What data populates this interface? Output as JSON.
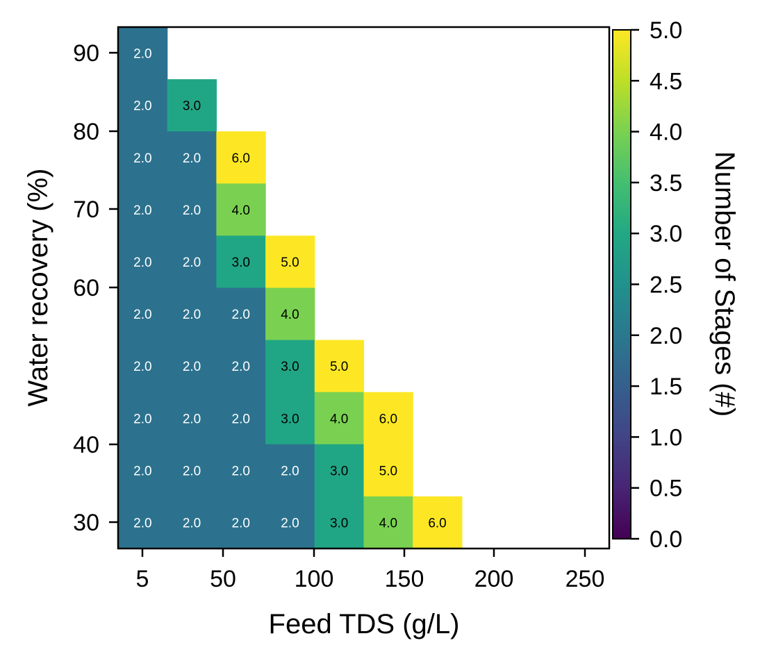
{
  "chart_data": {
    "type": "heatmap",
    "xlabel": "Feed TDS (g/L)",
    "ylabel": "Water recovery (%)",
    "colorbar_label": "Number of Stages (#)",
    "x_ticks": [
      "5",
      "50",
      "100",
      "150",
      "200",
      "250"
    ],
    "y_ticks": [
      "30",
      "40",
      "60",
      "70",
      "80",
      "90"
    ],
    "colorbar_ticks": [
      "0.0",
      "0.5",
      "1.0",
      "1.5",
      "2.0",
      "2.5",
      "3.0",
      "3.5",
      "4.0",
      "4.5",
      "5.0"
    ],
    "color_range": [
      0,
      5
    ],
    "colormap": "viridis",
    "rows": [
      {
        "row": 1,
        "values": [
          2,
          null,
          null,
          null,
          null,
          null,
          null,
          null,
          null,
          null
        ]
      },
      {
        "row": 2,
        "values": [
          2,
          3,
          null,
          null,
          null,
          null,
          null,
          null,
          null,
          null
        ]
      },
      {
        "row": 3,
        "values": [
          2,
          2,
          6,
          null,
          null,
          null,
          null,
          null,
          null,
          null
        ]
      },
      {
        "row": 4,
        "values": [
          2,
          2,
          4,
          null,
          null,
          null,
          null,
          null,
          null,
          null
        ]
      },
      {
        "row": 5,
        "values": [
          2,
          2,
          3,
          5,
          null,
          null,
          null,
          null,
          null,
          null
        ]
      },
      {
        "row": 6,
        "values": [
          2,
          2,
          2,
          4,
          null,
          null,
          null,
          null,
          null,
          null
        ]
      },
      {
        "row": 7,
        "values": [
          2,
          2,
          2,
          3,
          5,
          null,
          null,
          null,
          null,
          null
        ]
      },
      {
        "row": 8,
        "values": [
          2,
          2,
          2,
          3,
          4,
          6,
          null,
          null,
          null,
          null
        ]
      },
      {
        "row": 9,
        "values": [
          2,
          2,
          2,
          2,
          3,
          5,
          null,
          null,
          null,
          null
        ]
      },
      {
        "row": 10,
        "values": [
          2,
          2,
          2,
          2,
          3,
          4,
          6,
          null,
          null,
          null
        ]
      }
    ],
    "cell_labels": [
      [
        "2.0",
        "",
        "",
        "",
        "",
        "",
        "",
        "",
        "",
        ""
      ],
      [
        "2.0",
        "3.0",
        "",
        "",
        "",
        "",
        "",
        "",
        "",
        ""
      ],
      [
        "2.0",
        "2.0",
        "6.0",
        "",
        "",
        "",
        "",
        "",
        "",
        ""
      ],
      [
        "2.0",
        "2.0",
        "4.0",
        "",
        "",
        "",
        "",
        "",
        "",
        ""
      ],
      [
        "2.0",
        "2.0",
        "3.0",
        "5.0",
        "",
        "",
        "",
        "",
        "",
        ""
      ],
      [
        "2.0",
        "2.0",
        "2.0",
        "4.0",
        "",
        "",
        "",
        "",
        "",
        ""
      ],
      [
        "2.0",
        "2.0",
        "2.0",
        "3.0",
        "5.0",
        "",
        "",
        "",
        "",
        ""
      ],
      [
        "2.0",
        "2.0",
        "2.0",
        "3.0",
        "4.0",
        "6.0",
        "",
        "",
        "",
        ""
      ],
      [
        "2.0",
        "2.0",
        "2.0",
        "2.0",
        "3.0",
        "5.0",
        "",
        "",
        "",
        ""
      ],
      [
        "2.0",
        "2.0",
        "2.0",
        "2.0",
        "3.0",
        "4.0",
        "6.0",
        "",
        "",
        ""
      ]
    ],
    "colors": {
      "v2": "#2c728e",
      "v3": "#21a685",
      "v4": "#7ad151",
      "v5": "#fde725",
      "v6": "#fde725",
      "label_light": "#ffffff",
      "label_dark": "#000000"
    }
  }
}
